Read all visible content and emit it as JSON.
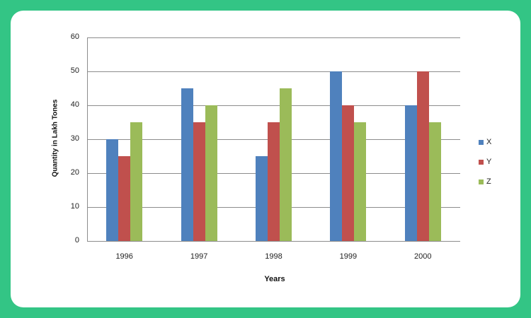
{
  "chart_data": {
    "type": "bar",
    "title": "",
    "xlabel": "Years",
    "ylabel": "Quantity in Lakh Tones",
    "categories": [
      "1996",
      "1997",
      "1998",
      "1999",
      "2000"
    ],
    "series": [
      {
        "name": "X",
        "color": "#4f81bd",
        "values": [
          30,
          45,
          25,
          50,
          40
        ]
      },
      {
        "name": "Y",
        "color": "#c0504d",
        "values": [
          25,
          35,
          35,
          40,
          50
        ]
      },
      {
        "name": "Z",
        "color": "#9bbb59",
        "values": [
          35,
          40,
          45,
          35,
          35
        ]
      }
    ],
    "ylim": [
      0,
      60
    ],
    "yticks": [
      0,
      10,
      20,
      30,
      40,
      50,
      60
    ],
    "grid": true,
    "legend_position": "right"
  },
  "colors": {
    "background": "#33c585",
    "card": "#ffffff"
  }
}
